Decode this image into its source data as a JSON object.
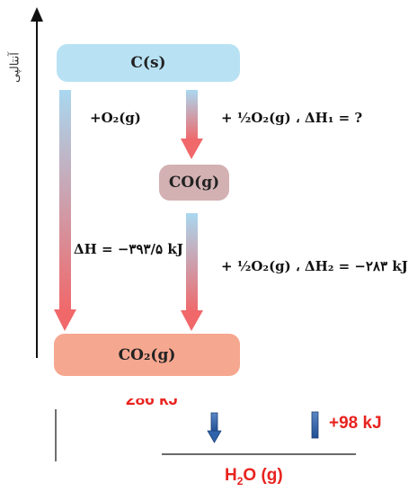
{
  "diagram": {
    "axis_label": "آنتالپی",
    "states": {
      "top": "C(s)",
      "middle": "CO(g)",
      "bottom": "CO₂(g)"
    },
    "reactions": {
      "direct_reactant": "+O₂(g)",
      "direct_enthalpy": "ΔH = −۳۹۳/۵ kJ",
      "step1": "+ ½O₂(g) ، ΔH₁ = ?",
      "step2": "+ ½O₂(g) ، ΔH₂ = −۲۸۳ kJ"
    },
    "colors": {
      "top_box": "#b8e2f4",
      "middle_box": "#d3b1b3",
      "bottom_box": "#f6a790",
      "arrow_start": "#a9d8f0",
      "arrow_end": "#f0686a"
    }
  },
  "lower_fragment": {
    "partial_label": "286 kJ",
    "right_label": "+98 kJ",
    "species": "H",
    "species_sub": "2",
    "species_rest": "O (g)",
    "label_color": "#e8231f"
  }
}
